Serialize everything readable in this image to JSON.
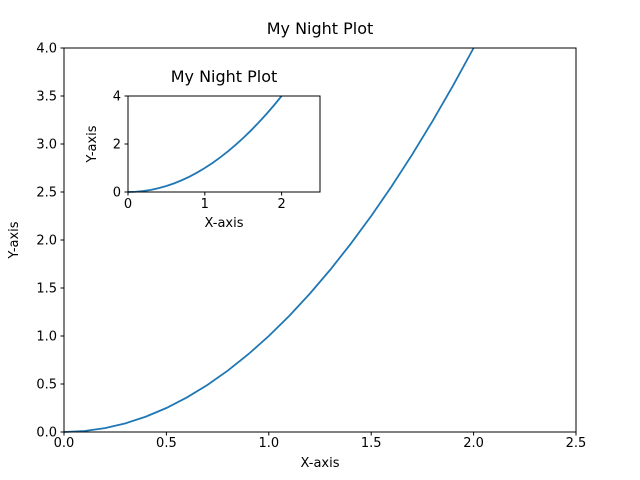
{
  "chart_data": [
    {
      "type": "line",
      "title": "My Night Plot",
      "x_label": "X-axis",
      "y_label": "Y-axis",
      "x": [
        0,
        0.1,
        0.2,
        0.3,
        0.4,
        0.5,
        0.6,
        0.7,
        0.8,
        0.9,
        1.0,
        1.1,
        1.2,
        1.3,
        1.4,
        1.5,
        1.6,
        1.7,
        1.8,
        1.9,
        2.0
      ],
      "values": [
        0,
        0.01,
        0.04,
        0.09,
        0.16,
        0.25,
        0.36,
        0.49,
        0.64,
        0.81,
        1,
        1.21,
        1.44,
        1.69,
        1.96,
        2.25,
        2.56,
        2.89,
        3.24,
        3.61,
        4
      ],
      "color": "#1f77b4",
      "xlim": [
        0,
        2.5
      ],
      "xticks": [
        {
          "value": 0,
          "label": "0.0"
        },
        0.5,
        {
          "value": 1,
          "label": "1.0"
        },
        1.5,
        {
          "value": 2,
          "label": "2.0"
        },
        2.5
      ],
      "ylim": [
        0,
        4
      ],
      "yticks": [
        {
          "value": 0,
          "label": "0.0"
        },
        0.5,
        {
          "value": 1,
          "label": "1.0"
        },
        1.5,
        {
          "value": 2,
          "label": "2.0"
        },
        2.5,
        {
          "value": 3,
          "label": "3.0"
        },
        3.5,
        {
          "value": 4,
          "label": "4.0"
        }
      ],
      "grid": false
    },
    {
      "type": "line",
      "title": "My Night Plot",
      "x_label": "X-axis",
      "y_label": "Y-axis",
      "x": [
        0,
        0.1,
        0.2,
        0.3,
        0.4,
        0.5,
        0.6,
        0.7,
        0.8,
        0.9,
        1.0,
        1.1,
        1.2,
        1.3,
        1.4,
        1.5,
        1.6,
        1.7,
        1.8,
        1.9,
        2.0
      ],
      "values": [
        0,
        0.01,
        0.04,
        0.09,
        0.16,
        0.25,
        0.36,
        0.49,
        0.64,
        0.81,
        1,
        1.21,
        1.44,
        1.69,
        1.96,
        2.25,
        2.56,
        2.89,
        3.24,
        3.61,
        4
      ],
      "color": "#1f77b4",
      "xlim": [
        0,
        2.5
      ],
      "xticks": [
        0,
        1,
        2
      ],
      "ylim": [
        0,
        4
      ],
      "yticks": [
        0,
        2,
        4
      ],
      "grid": false
    }
  ]
}
